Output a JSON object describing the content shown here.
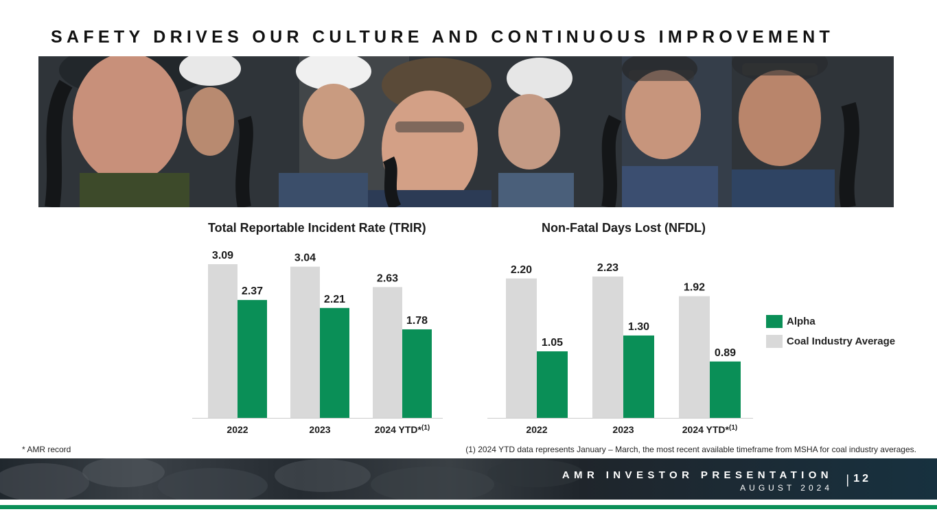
{
  "page": {
    "title": "SAFETY DRIVES OUR CULTURE AND CONTINUOUS IMPROVEMENT",
    "footnote_left": "* AMR record",
    "footnote_right": "(1) 2024 YTD data represents January – March, the most recent available timeframe from MSHA for coal industry averages."
  },
  "footer": {
    "line1": "AMR INVESTOR PRESENTATION",
    "line2": "AUGUST 2024",
    "separator": "|",
    "page_number": "12"
  },
  "colors": {
    "alpha": "#0a8f57",
    "industry": "#d9d9d9",
    "axis": "#cccccc"
  },
  "legend": {
    "items": [
      {
        "label": "Alpha",
        "color": "#0a8f57"
      },
      {
        "label": "Coal Industry Average",
        "color": "#d9d9d9"
      }
    ]
  },
  "chart_data": [
    {
      "type": "bar",
      "title": "Total Reportable Incident Rate (TRIR)",
      "categories": [
        "2022",
        "2023",
        "2024 YTD*"
      ],
      "category_superscripts": [
        "",
        "",
        "(1)"
      ],
      "series": [
        {
          "name": "Coal Industry Average",
          "values": [
            3.09,
            3.04,
            2.63
          ]
        },
        {
          "name": "Alpha",
          "values": [
            2.37,
            2.21,
            1.78
          ]
        }
      ],
      "value_labels": [
        [
          "3.09",
          "3.04",
          "2.63"
        ],
        [
          "2.37",
          "2.21",
          "1.78"
        ]
      ],
      "ylim": [
        0,
        3.09
      ],
      "grid": false,
      "legend": "right"
    },
    {
      "type": "bar",
      "title": "Non-Fatal Days Lost (NFDL)",
      "categories": [
        "2022",
        "2023",
        "2024 YTD*"
      ],
      "category_superscripts": [
        "",
        "",
        "(1)"
      ],
      "series": [
        {
          "name": "Coal Industry Average",
          "values": [
            2.2,
            2.23,
            1.92
          ]
        },
        {
          "name": "Alpha",
          "values": [
            1.05,
            1.3,
            0.89
          ]
        }
      ],
      "value_labels": [
        [
          "2.20",
          "2.23",
          "1.92"
        ],
        [
          "1.05",
          "1.30",
          "0.89"
        ]
      ],
      "ylim": [
        0,
        2.23
      ],
      "grid": false,
      "legend": "right"
    }
  ]
}
